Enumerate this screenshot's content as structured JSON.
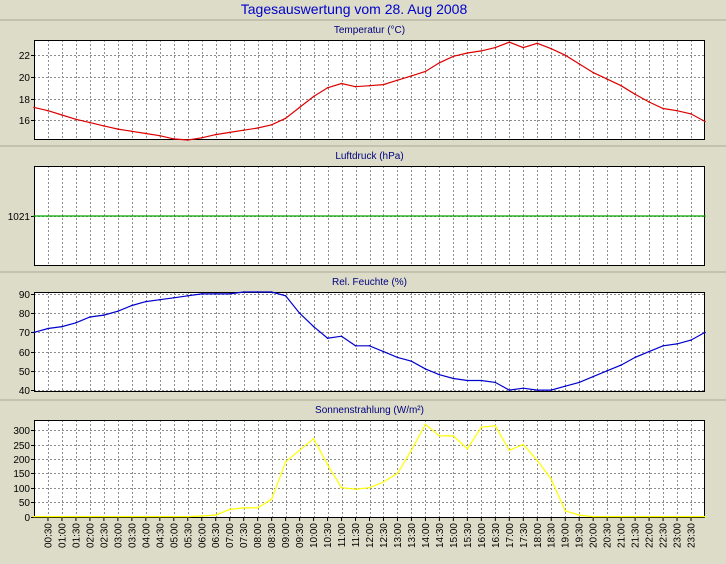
{
  "page": {
    "title": "Tagesauswertung vom 28. Aug 2008",
    "title_color": "#0000cc",
    "background": "#dcdcc8",
    "plot_background": "#ffffff"
  },
  "time_labels": [
    "00:30",
    "01:00",
    "01:30",
    "02:00",
    "02:30",
    "03:00",
    "03:30",
    "04:00",
    "04:30",
    "05:00",
    "05:30",
    "06:00",
    "06:30",
    "07:00",
    "07:30",
    "08:00",
    "08:30",
    "09:00",
    "09:30",
    "10:00",
    "10:30",
    "11:00",
    "11:30",
    "12:00",
    "12:30",
    "13:00",
    "13:30",
    "14:00",
    "14:30",
    "15:00",
    "15:30",
    "16:00",
    "16:30",
    "17:00",
    "17:30",
    "18:00",
    "18:30",
    "19:00",
    "19:30",
    "20:00",
    "20:30",
    "21:00",
    "21:30",
    "22:00",
    "22:30",
    "23:00",
    "23:30"
  ],
  "chart_data": [
    {
      "type": "line",
      "title": "Temperatur (°C)",
      "color": "#dd0000",
      "grid": true,
      "ylim": [
        14.2,
        23.4
      ],
      "yticks": [
        16,
        18,
        20,
        22
      ],
      "x": [
        "00:00",
        "00:30",
        "01:00",
        "01:30",
        "02:00",
        "02:30",
        "03:00",
        "03:30",
        "04:00",
        "04:30",
        "05:00",
        "05:30",
        "06:00",
        "06:30",
        "07:00",
        "07:30",
        "08:00",
        "08:30",
        "09:00",
        "09:30",
        "10:00",
        "10:30",
        "11:00",
        "11:30",
        "12:00",
        "12:30",
        "13:00",
        "13:30",
        "14:00",
        "14:30",
        "15:00",
        "15:30",
        "16:00",
        "16:30",
        "17:00",
        "17:30",
        "18:00",
        "18:30",
        "19:00",
        "19:30",
        "20:00",
        "20:30",
        "21:00",
        "21:30",
        "22:00",
        "22:30",
        "23:00",
        "23:30",
        "24:00"
      ],
      "values": [
        17.2,
        16.9,
        16.5,
        16.1,
        15.8,
        15.5,
        15.2,
        15.0,
        14.8,
        14.6,
        14.3,
        14.2,
        14.4,
        14.7,
        14.9,
        15.1,
        15.3,
        15.6,
        16.2,
        17.2,
        18.2,
        19.0,
        19.4,
        19.1,
        19.2,
        19.3,
        19.7,
        20.1,
        20.5,
        21.3,
        21.9,
        22.2,
        22.4,
        22.7,
        23.2,
        22.7,
        23.1,
        22.6,
        22.0,
        21.2,
        20.4,
        19.8,
        19.2,
        18.4,
        17.7,
        17.1,
        16.9,
        16.6,
        15.9
      ]
    },
    {
      "type": "line",
      "title": "Luftdruck (hPa)",
      "color": "#00aa00",
      "grid": true,
      "ylim": [
        1016,
        1026
      ],
      "yticks": [
        1021
      ],
      "x": [
        "00:00",
        "24:00"
      ],
      "values": [
        1021,
        1021
      ]
    },
    {
      "type": "line",
      "title": "Rel. Feuchte (%)",
      "color": "#0000cc",
      "grid": true,
      "ylim": [
        39,
        91
      ],
      "yticks": [
        40,
        50,
        60,
        70,
        80,
        90
      ],
      "x": [
        "00:00",
        "00:30",
        "01:00",
        "01:30",
        "02:00",
        "02:30",
        "03:00",
        "03:30",
        "04:00",
        "04:30",
        "05:00",
        "05:30",
        "06:00",
        "06:30",
        "07:00",
        "07:30",
        "08:00",
        "08:30",
        "09:00",
        "09:30",
        "10:00",
        "10:30",
        "11:00",
        "11:30",
        "12:00",
        "12:30",
        "13:00",
        "13:30",
        "14:00",
        "14:30",
        "15:00",
        "15:30",
        "16:00",
        "16:30",
        "17:00",
        "17:30",
        "18:00",
        "18:30",
        "19:00",
        "19:30",
        "20:00",
        "20:30",
        "21:00",
        "21:30",
        "22:00",
        "22:30",
        "23:00",
        "23:30",
        "24:00"
      ],
      "values": [
        70,
        72,
        73,
        75,
        78,
        79,
        81,
        84,
        86,
        87,
        88,
        89,
        90,
        90,
        90,
        91,
        91,
        91,
        89,
        80,
        73,
        67,
        68,
        63,
        63,
        60,
        57,
        55,
        51,
        48,
        46,
        45,
        45,
        44,
        40,
        41,
        40,
        40,
        42,
        44,
        47,
        50,
        53,
        57,
        60,
        63,
        64,
        66,
        70
      ]
    },
    {
      "type": "line",
      "title": "Sonnenstrahlung (W/m²)",
      "color": "#ffff00",
      "grid": true,
      "ylim": [
        -5,
        335
      ],
      "yticks": [
        0,
        50,
        100,
        150,
        200,
        250,
        300
      ],
      "x": [
        "00:00",
        "00:30",
        "01:00",
        "01:30",
        "02:00",
        "02:30",
        "03:00",
        "03:30",
        "04:00",
        "04:30",
        "05:00",
        "05:30",
        "06:00",
        "06:30",
        "07:00",
        "07:30",
        "08:00",
        "08:30",
        "09:00",
        "09:30",
        "10:00",
        "10:30",
        "11:00",
        "11:30",
        "12:00",
        "12:30",
        "13:00",
        "13:30",
        "14:00",
        "14:30",
        "15:00",
        "15:30",
        "16:00",
        "16:30",
        "17:00",
        "17:30",
        "18:00",
        "18:30",
        "19:00",
        "19:30",
        "20:00",
        "20:30",
        "21:00",
        "21:30",
        "22:00",
        "22:30",
        "23:00",
        "23:30",
        "24:00"
      ],
      "values": [
        0,
        0,
        0,
        0,
        0,
        0,
        0,
        0,
        0,
        0,
        0,
        0,
        2,
        5,
        25,
        30,
        30,
        60,
        190,
        230,
        270,
        180,
        100,
        95,
        100,
        120,
        150,
        230,
        320,
        280,
        280,
        235,
        310,
        315,
        230,
        250,
        195,
        130,
        20,
        5,
        0,
        0,
        0,
        0,
        0,
        0,
        0,
        0,
        0
      ]
    }
  ]
}
